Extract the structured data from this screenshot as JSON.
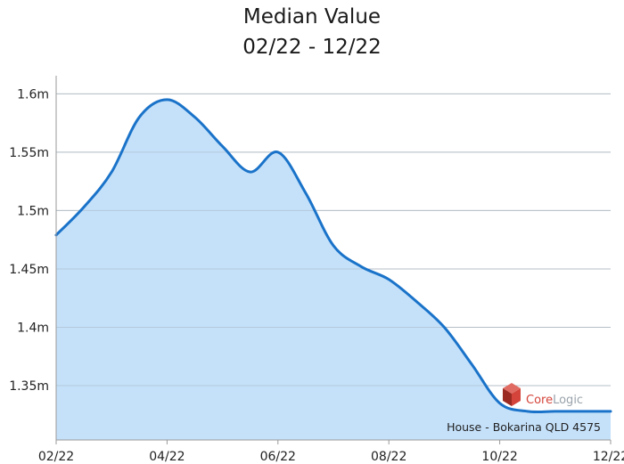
{
  "chart_data": {
    "type": "area",
    "title": "Median Value",
    "subtitle": "02/22 - 12/22",
    "xlabel": "",
    "ylabel": "",
    "x_tick_labels": [
      "02/22",
      "04/22",
      "06/22",
      "08/22",
      "10/22",
      "12/22"
    ],
    "y_tick_labels": [
      "1.35m",
      "1.4m",
      "1.45m",
      "1.5m",
      "1.55m",
      "1.6m"
    ],
    "y_ticks": [
      1.35,
      1.4,
      1.45,
      1.5,
      1.55,
      1.6
    ],
    "ylim": [
      1.3035,
      1.6155
    ],
    "xlim": [
      0,
      10
    ],
    "grid": "horizontal",
    "series": [
      {
        "color": "#1a73c9",
        "fill": "#c5e1fa",
        "x": [
          0,
          0.5,
          1,
          1.5,
          2,
          2.5,
          3,
          3.5,
          4,
          4.5,
          5,
          5.5,
          6,
          6.5,
          7,
          7.5,
          8,
          8.5,
          9,
          9.5,
          10
        ],
        "values": [
          1.479,
          1.503,
          1.533,
          1.58,
          1.595,
          1.58,
          1.555,
          1.533,
          1.55,
          1.515,
          1.47,
          1.452,
          1.441,
          1.422,
          1.4,
          1.368,
          1.335,
          1.328,
          1.328,
          1.328,
          1.328
        ]
      }
    ],
    "attribution": "House - Bokarina QLD 4575",
    "brand": {
      "core": "Core",
      "logic": "Logic",
      "logo_color": "#d4443a"
    }
  }
}
